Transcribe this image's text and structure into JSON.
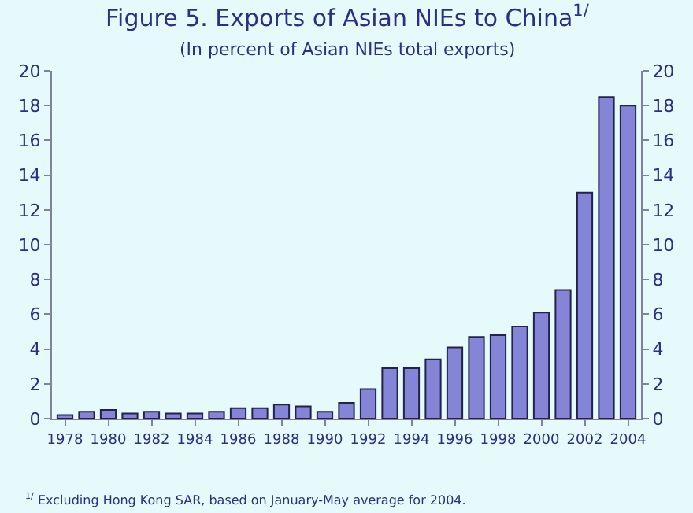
{
  "chart_data": {
    "type": "bar",
    "title": "Figure 5. Exports of Asian NIEs to China$^{1/}$",
    "subtitle": "(In percent of Asian NIEs total exports)",
    "categories": [
      "1978",
      null,
      "1980",
      null,
      "1982",
      null,
      "1984",
      null,
      "1986",
      null,
      "1988",
      null,
      "1990",
      null,
      "1992",
      null,
      "1994",
      null,
      "1996",
      null,
      "1998",
      null,
      "2000",
      null,
      "2002",
      null,
      "2004"
    ],
    "values": [
      0.2,
      0.4,
      0.5,
      0.3,
      0.4,
      0.3,
      0.3,
      0.4,
      0.6,
      0.6,
      0.8,
      0.7,
      0.4,
      0.9,
      1.7,
      2.9,
      2.9,
      3.4,
      4.1,
      4.7,
      4.8,
      5.3,
      6.1,
      7.4,
      13.0,
      18.5,
      18.0
    ],
    "color": "#8585d8",
    "ylim": [
      0,
      20
    ],
    "yticks": [
      0,
      2,
      4,
      6,
      8,
      10,
      12,
      14,
      16,
      18,
      20
    ],
    "y2lim": [
      0,
      20
    ],
    "y2ticks": [
      0,
      2,
      4,
      6,
      8,
      10,
      12,
      14,
      16,
      18,
      20
    ],
    "grid": false,
    "legend": false,
    "annotations": [
      "$^{1/}$ Excluding Hong Kong SAR, based on January-May average for 2004."
    ]
  }
}
